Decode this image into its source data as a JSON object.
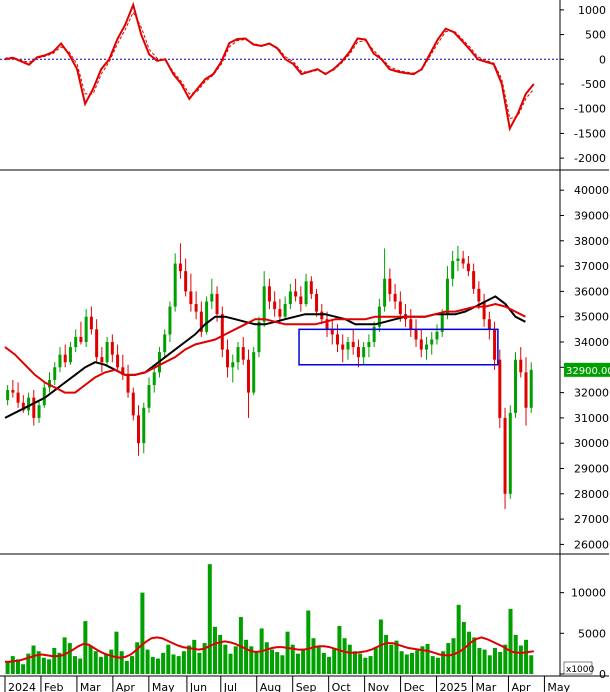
{
  "chart_data": [
    {
      "type": "line",
      "panel": "oscillator",
      "yticks": [
        1000,
        500,
        0,
        -500,
        -1000,
        -1500,
        -2000
      ],
      "ylim": [
        -2200,
        1200
      ],
      "zero_line": 0,
      "series": [
        {
          "color": "#e00000",
          "values": [
            0,
            30,
            -40,
            -110,
            40,
            80,
            150,
            320,
            100,
            -200,
            -900,
            -600,
            -200,
            0,
            400,
            700,
            1100,
            500,
            100,
            -30,
            0,
            -300,
            -500,
            -800,
            -600,
            -400,
            -300,
            -50,
            330,
            410,
            420,
            300,
            270,
            320,
            220,
            0,
            -100,
            -300,
            -250,
            -200,
            -300,
            -200,
            -50,
            150,
            420,
            400,
            120,
            0,
            -200,
            -250,
            -280,
            -300,
            -200,
            100,
            400,
            620,
            550,
            380,
            200,
            0,
            -50,
            -100,
            -500,
            -1400,
            -1100,
            -700,
            -500
          ]
        },
        {
          "color": "#e00000",
          "dashed": true,
          "values": [
            20,
            40,
            -20,
            -60,
            20,
            60,
            120,
            250,
            150,
            -100,
            -700,
            -700,
            -300,
            -50,
            300,
            600,
            950,
            650,
            200,
            20,
            -20,
            -250,
            -450,
            -700,
            -650,
            -450,
            -320,
            -100,
            250,
            380,
            400,
            320,
            280,
            300,
            240,
            50,
            -50,
            -250,
            -260,
            -220,
            -280,
            -220,
            -80,
            100,
            350,
            380,
            180,
            20,
            -150,
            -220,
            -260,
            -280,
            -220,
            50,
            320,
            560,
            580,
            420,
            250,
            50,
            -20,
            -80,
            -400,
            -1200,
            -1150,
            -800,
            -600
          ]
        }
      ]
    },
    {
      "type": "line",
      "panel": "price",
      "yticks": [
        40000,
        39000,
        38000,
        37000,
        36000,
        35000,
        34000,
        33000,
        32000,
        31000,
        30000,
        29000,
        28000,
        27000,
        26000
      ],
      "ylim": [
        25700,
        40600
      ],
      "last_price_label": "32900.00",
      "last_price": 32900,
      "highlight_box": {
        "x_start": 69.5,
        "x_end": 116.5,
        "y_low": 33100,
        "y_high": 34500
      },
      "ohlc": [
        [
          31700,
          32300,
          31500,
          32100
        ],
        [
          32100,
          32500,
          31800,
          32000
        ],
        [
          32000,
          32400,
          31400,
          31600
        ],
        [
          31600,
          31900,
          31200,
          31300
        ],
        [
          31300,
          32000,
          31100,
          31800
        ],
        [
          31800,
          32100,
          30700,
          31000
        ],
        [
          31000,
          31700,
          30800,
          31500
        ],
        [
          31500,
          32400,
          31400,
          32200
        ],
        [
          32200,
          32800,
          32000,
          32500
        ],
        [
          32500,
          33200,
          32300,
          33000
        ],
        [
          33000,
          33800,
          32800,
          33500
        ],
        [
          33500,
          33900,
          33000,
          33200
        ],
        [
          33200,
          34000,
          33100,
          33800
        ],
        [
          33800,
          34500,
          33600,
          34200
        ],
        [
          34200,
          34800,
          33900,
          34000
        ],
        [
          34000,
          35300,
          33800,
          35000
        ],
        [
          35000,
          35400,
          34300,
          34500
        ],
        [
          34500,
          34900,
          33200,
          33400
        ],
        [
          33400,
          33800,
          32800,
          33200
        ],
        [
          33200,
          34200,
          33100,
          34000
        ],
        [
          34000,
          34300,
          33200,
          33500
        ],
        [
          33500,
          33900,
          32900,
          33000
        ],
        [
          33000,
          33500,
          32500,
          32700
        ],
        [
          32700,
          33100,
          31800,
          32000
        ],
        [
          32000,
          32200,
          30900,
          31100
        ],
        [
          31100,
          31500,
          29500,
          30000
        ],
        [
          30000,
          31600,
          29600,
          31400
        ],
        [
          31400,
          32600,
          31200,
          32300
        ],
        [
          32300,
          33000,
          32000,
          32800
        ],
        [
          32800,
          33800,
          32600,
          33600
        ],
        [
          33600,
          34500,
          33400,
          34300
        ],
        [
          34300,
          35600,
          34000,
          35400
        ],
        [
          35400,
          37500,
          35200,
          37100
        ],
        [
          37100,
          37900,
          36500,
          36800
        ],
        [
          36800,
          37300,
          35800,
          36000
        ],
        [
          36000,
          36700,
          35200,
          35500
        ],
        [
          35500,
          36000,
          34900,
          35200
        ],
        [
          35200,
          35600,
          34200,
          34400
        ],
        [
          34400,
          35800,
          34300,
          35600
        ],
        [
          35600,
          36500,
          35300,
          35900
        ],
        [
          35900,
          36200,
          34800,
          35100
        ],
        [
          35100,
          35400,
          33400,
          33700
        ],
        [
          33700,
          34100,
          32600,
          33000
        ],
        [
          33000,
          33500,
          32400,
          33200
        ],
        [
          33200,
          34000,
          32900,
          33800
        ],
        [
          33800,
          34200,
          33100,
          33300
        ],
        [
          33300,
          33700,
          31000,
          32000
        ],
        [
          32000,
          33800,
          31900,
          33600
        ],
        [
          33600,
          35000,
          33400,
          34800
        ],
        [
          34800,
          36800,
          34600,
          36200
        ],
        [
          36200,
          36500,
          35300,
          35600
        ],
        [
          35600,
          36000,
          35000,
          35300
        ],
        [
          35300,
          35700,
          34700,
          35000
        ],
        [
          35000,
          35800,
          34900,
          35500
        ],
        [
          35500,
          36300,
          35300,
          36000
        ],
        [
          36000,
          36500,
          35600,
          35800
        ],
        [
          35800,
          36200,
          35200,
          35500
        ],
        [
          35500,
          36700,
          35400,
          36400
        ],
        [
          36400,
          36600,
          35700,
          35900
        ],
        [
          35900,
          36100,
          35000,
          35200
        ],
        [
          35200,
          35500,
          34700,
          34900
        ],
        [
          34900,
          35200,
          34200,
          34500
        ],
        [
          34500,
          34900,
          33900,
          34300
        ],
        [
          34300,
          34700,
          33600,
          33900
        ],
        [
          33900,
          34300,
          33200,
          33700
        ],
        [
          33700,
          34200,
          33300,
          34000
        ],
        [
          34000,
          34500,
          33500,
          33800
        ],
        [
          33800,
          34100,
          33000,
          33400
        ],
        [
          33400,
          34000,
          33100,
          33800
        ],
        [
          33800,
          34300,
          33400,
          34000
        ],
        [
          34000,
          34800,
          33800,
          34600
        ],
        [
          34600,
          35700,
          34400,
          35400
        ],
        [
          35400,
          37700,
          35200,
          36500
        ],
        [
          36500,
          36900,
          35600,
          35900
        ],
        [
          35900,
          36300,
          35300,
          35600
        ],
        [
          35600,
          36000,
          34800,
          35100
        ],
        [
          35100,
          35500,
          34600,
          34900
        ],
        [
          34900,
          35300,
          34200,
          34500
        ],
        [
          34500,
          34900,
          33800,
          34100
        ],
        [
          34100,
          34500,
          33400,
          33700
        ],
        [
          33700,
          34200,
          33300,
          33900
        ],
        [
          33900,
          34400,
          33500,
          34100
        ],
        [
          34100,
          34700,
          33900,
          34400
        ],
        [
          34400,
          35300,
          34200,
          35100
        ],
        [
          35100,
          37000,
          34900,
          36500
        ],
        [
          36500,
          37600,
          36200,
          37200
        ],
        [
          37200,
          37800,
          36800,
          37300
        ],
        [
          37300,
          37600,
          36900,
          37100
        ],
        [
          37100,
          37400,
          36600,
          36800
        ],
        [
          36800,
          37100,
          35900,
          36100
        ],
        [
          36100,
          36400,
          35300,
          35600
        ],
        [
          35600,
          35900,
          34600,
          34900
        ],
        [
          34900,
          35200,
          34100,
          34500
        ],
        [
          34500,
          34800,
          32900,
          33300
        ],
        [
          33300,
          33700,
          30600,
          31000
        ],
        [
          31000,
          31400,
          27400,
          28000
        ],
        [
          28000,
          31500,
          27800,
          31200
        ],
        [
          31200,
          33600,
          31000,
          33300
        ],
        [
          33300,
          33800,
          32600,
          32800
        ],
        [
          32800,
          33400,
          30700,
          31400
        ],
        [
          31400,
          33200,
          31200,
          32900
        ]
      ],
      "series": [
        {
          "name": "",
          "color": "#000000",
          "values": [
            31000,
            31200,
            31400,
            31600,
            31800,
            32100,
            32400,
            32700,
            33000,
            33200,
            33100,
            32900,
            32700,
            32700,
            32800,
            33100,
            33400,
            33700,
            34000,
            34300,
            34700,
            35000,
            35000,
            34900,
            34800,
            34700,
            34700,
            34800,
            34900,
            35000,
            35100,
            35100,
            35100,
            35000,
            34900,
            34700,
            34700,
            34700,
            34800,
            34900,
            35000,
            35000,
            35000,
            35100,
            35100,
            35100,
            35200,
            35400,
            35600,
            35800,
            35500,
            35000,
            34800
          ]
        },
        {
          "name": "",
          "color": "#e00000",
          "values": [
            33800,
            33500,
            33100,
            32700,
            32400,
            32200,
            32000,
            32000,
            32300,
            32600,
            32800,
            32900,
            32700,
            32700,
            32800,
            33000,
            33200,
            33400,
            33700,
            33900,
            34000,
            34100,
            34300,
            34500,
            34700,
            34900,
            34900,
            34800,
            34700,
            34700,
            34700,
            34700,
            34800,
            34900,
            34900,
            34900,
            34900,
            35000,
            35000,
            35000,
            35000,
            35000,
            35000,
            35100,
            35200,
            35200,
            35300,
            35400,
            35400,
            35500,
            35400,
            35200,
            35000
          ]
        }
      ]
    },
    {
      "type": "bar",
      "panel": "volume",
      "unit_label": "x1000",
      "yticks": [
        10000,
        5000,
        0
      ],
      "ylim": [
        0,
        14500
      ],
      "bar_color": "#00a000",
      "values": [
        1500,
        2200,
        1800,
        1200,
        2500,
        3500,
        2800,
        2000,
        1800,
        3200,
        2600,
        4500,
        3800,
        2200,
        1900,
        6500,
        3500,
        2800,
        2100,
        2400,
        3000,
        5200,
        2800,
        1600,
        2200,
        3900,
        10000,
        3000,
        2100,
        1900,
        2600,
        3600,
        2400,
        2200,
        2800,
        3500,
        4200,
        2600,
        3800,
        13500,
        5800,
        4800,
        3600,
        2500,
        3400,
        7000,
        4200,
        3400,
        2800,
        5600,
        3900,
        3000,
        2700,
        2300,
        5200,
        3600,
        2500,
        3100,
        7800,
        4400,
        3400,
        2600,
        2100,
        3200,
        5900,
        4400,
        3600,
        2800,
        2500,
        2000,
        2200,
        3300,
        6700,
        4800,
        3600,
        4100,
        2800,
        2400,
        2600,
        2900,
        3400,
        3700,
        2200,
        2000,
        2800,
        3800,
        4400,
        8500,
        6400,
        5200,
        4500,
        3200,
        3000,
        2300,
        3200,
        2700,
        3600,
        8000,
        4800,
        3500,
        4200,
        2300
      ],
      "series": [
        {
          "name": "",
          "color": "#e00000",
          "values": [
            1500,
            1500,
            1600,
            1700,
            1900,
            2100,
            2300,
            2400,
            2300,
            2200,
            2200,
            2300,
            2600,
            3000,
            3400,
            3700,
            3600,
            3200,
            2800,
            2500,
            2300,
            2100,
            2000,
            2100,
            2400,
            2900,
            3500,
            4000,
            4400,
            4500,
            4400,
            4100,
            3800,
            3500,
            3300,
            3200,
            3100,
            3000,
            3100,
            3400,
            3700,
            3900,
            4000,
            3900,
            3700,
            3400,
            3100,
            2800,
            2700,
            2800,
            3000,
            3200,
            3300,
            3300,
            3200,
            3100,
            3000,
            3000,
            3100,
            3300,
            3400,
            3400,
            3300,
            3100,
            2900,
            2700,
            2600,
            2600,
            2700,
            2800,
            3000,
            3300,
            3600,
            3800,
            3800,
            3600,
            3400,
            3200,
            3100,
            3000,
            2900,
            2800,
            2600,
            2400,
            2300,
            2300,
            2500,
            2800,
            3300,
            3900,
            4300,
            4500,
            4300,
            4000,
            3700,
            3400,
            3000,
            2700,
            2600,
            2600,
            2700,
            2800
          ]
        }
      ]
    }
  ],
  "xaxis": {
    "labels": [
      "2024",
      "Feb",
      "Mar",
      "Apr",
      "May",
      "Jun",
      "Jul",
      "Aug",
      "Sep",
      "Oct",
      "Nov",
      "Dec",
      "2025",
      "Mar",
      "Apr",
      "May"
    ],
    "label_positions": [
      0,
      8.5,
      17,
      25.5,
      34,
      43,
      51,
      59.5,
      68,
      76.5,
      85,
      93.5,
      102,
      110.5,
      119,
      127.5
    ]
  }
}
